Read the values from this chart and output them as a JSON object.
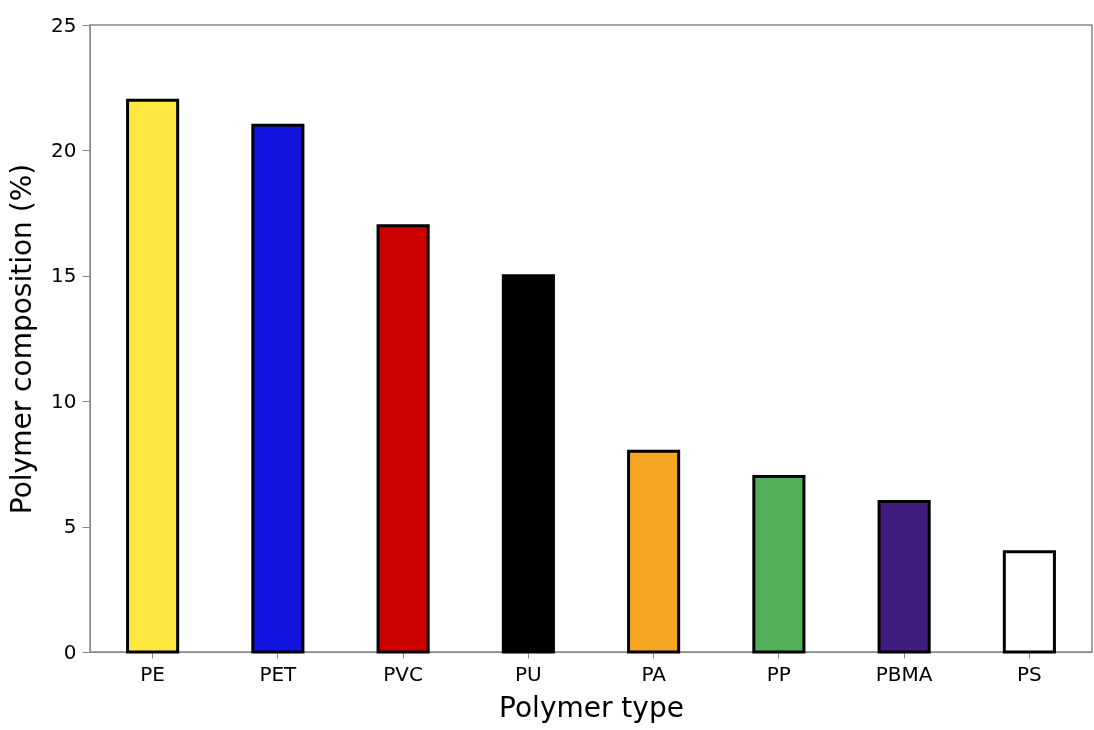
{
  "chart_data": {
    "type": "bar",
    "xlabel": "Polymer type",
    "ylabel": "Polymer composition (%)",
    "categories": [
      "PE",
      "PET",
      "PVC",
      "PU",
      "PA",
      "PP",
      "PBMA",
      "PS"
    ],
    "values": [
      22,
      21,
      17,
      15,
      8,
      7,
      6,
      4
    ],
    "colors": [
      "#ffe840",
      "#1414e0",
      "#cc0000",
      "#000000",
      "#f5a623",
      "#52b05a",
      "#401e80",
      "#ffffff"
    ],
    "ylim": [
      0,
      25
    ],
    "yticks": [
      0,
      5,
      10,
      15,
      20,
      25
    ]
  }
}
